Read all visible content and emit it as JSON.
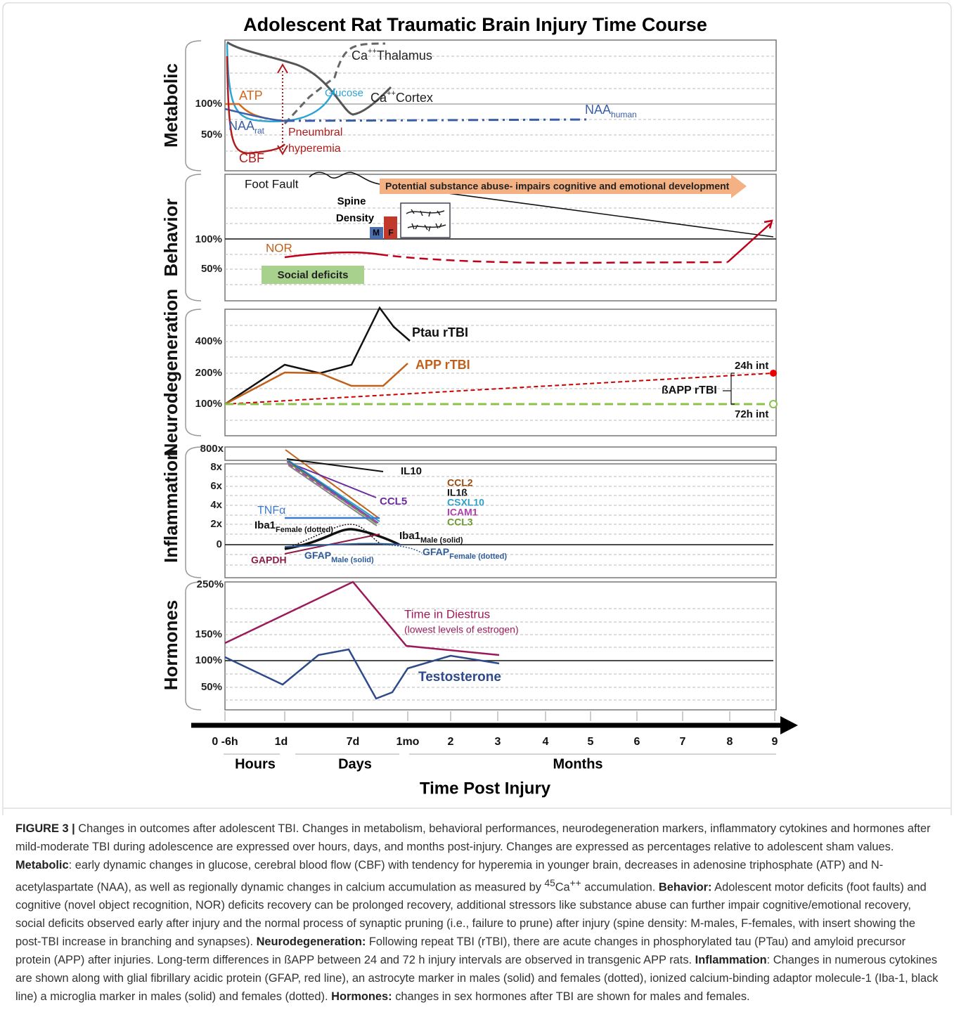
{
  "title": "Adolescent Rat Traumatic Brain Injury Time Course",
  "metabolic": {
    "name": "Metabolic",
    "yticks": [
      "100%",
      "50%"
    ],
    "ca_thalamus": {
      "base": "Ca",
      "sup": "++",
      "rest": "Thalamus"
    },
    "glucose": "Glucose",
    "ca_cortex": {
      "base": "Ca",
      "sup": "++",
      "rest": "Cortex"
    },
    "atp": "ATP",
    "naa_rat": {
      "base": "NAA",
      "sub": "rat"
    },
    "naa_human": {
      "base": "NAA",
      "sub": "human"
    },
    "cbf": "CBF",
    "pneumbral": [
      "Pneumbral",
      "hyperemia"
    ]
  },
  "behavior": {
    "name": "Behavior",
    "yticks": [
      "100%",
      "50%"
    ],
    "foot_fault": "Foot Fault",
    "substance": "Potential substance abuse- impairs cognitive and emotional development",
    "spine": [
      "Spine",
      "Density"
    ],
    "m": "M",
    "f": "F",
    "nor": "NOR",
    "social": "Social deficits"
  },
  "neurodegeneration": {
    "name": "Neurodegeneration",
    "yticks": [
      "400%",
      "200%",
      "100%"
    ],
    "ptau": "Ptau rTBI",
    "app": "APP rTBI",
    "h24": "24h int",
    "bapp": "ßAPP rTBI",
    "h72": "72h int"
  },
  "inflammation": {
    "name": "Inflammation",
    "yticks": [
      "800x",
      "8x",
      "6x",
      "4x",
      "2x",
      "0"
    ],
    "il10": "IL10",
    "ccl5": "CCL5",
    "group": [
      "CCL2",
      "IL1ß",
      "CSXL10",
      "ICAM1",
      "CCL3"
    ],
    "tnfa": "TNFα",
    "iba1_female": {
      "base": "Iba1",
      "sub": "Female (dotted)"
    },
    "iba1_male": {
      "base": "Iba1",
      "sub": "Male (solid)"
    },
    "gapdh": "GAPDH",
    "gfap_male": {
      "base": "GFAP",
      "sub": "Male (solid)"
    },
    "gfap_female": {
      "base": "GFAP",
      "sub": "Female (dotted)"
    }
  },
  "hormones": {
    "name": "Hormones",
    "yticks": [
      "250%",
      "150%",
      "100%",
      "50%"
    ],
    "diestrus": "Time in Diestrus",
    "diestrus_note": "(lowest levels of estrogen)",
    "testosterone": "Testosterone"
  },
  "axis": {
    "ticks": [
      "0 -6h",
      "1d",
      "7d",
      "1mo",
      "2",
      "3",
      "4",
      "5",
      "6",
      "7",
      "8",
      "9"
    ],
    "periods": [
      "Hours",
      "Days",
      "Months"
    ],
    "title": "Time Post Injury"
  },
  "caption": {
    "label": "FIGURE 3 |",
    "intro": "Changes in outcomes after adolescent TBI. Changes in metabolism, behavioral performances, neurodegeneration markers, inflammatory cytokines and hormones after mild-moderate TBI during adolescence are expressed over hours, days, and months post-injury. Changes are expressed as percentages relative to adolescent sham values.",
    "metabolic": {
      "heading": "Metabolic",
      "text": ": early dynamic changes in glucose, cerebral blood flow (CBF) with tendency for hyperemia in younger brain, decreases in adenosine triphosphate (ATP) and N-acetylaspartate (NAA), as well as regionally dynamic changes in calcium accumulation as measured by",
      "sup1": "45",
      "ca": "Ca",
      "sup2": "++",
      "end": "accumulation."
    },
    "behavior": {
      "heading": "Behavior:",
      "text": "Adolescent motor deficits (foot faults) and cognitive (novel object recognition, NOR) deficits recovery can be prolonged recovery, additional stressors like substance abuse can further impair cognitive/emotional recovery, social deficits observed early after injury and the normal process of synaptic pruning (i.e., failure to prune) after injury (spine density: M-males, F-females, with insert showing the post-TBI increase in branching and synapses)."
    },
    "neurodegeneration": {
      "heading": "Neurodegeneration:",
      "text": "Following repeat TBI (rTBI), there are acute changes in phosphorylated tau (PTau) and amyloid precursor protein (APP) after injuries. Long-term differences in ßAPP between 24 and 72 h injury intervals are observed in transgenic APP rats."
    },
    "inflammation": {
      "heading": "Inflammation",
      "text": ": Changes in numerous cytokines are shown along with glial fibrillary acidic protein (GFAP, red line), an astrocyte marker in males (solid) and females (dotted), ionized calcium-binding adaptor molecule-1 (Iba-1, black line) a microglia marker in males (solid) and females (dotted)."
    },
    "hormones": {
      "heading": "Hormones:",
      "text": "changes in sex hormones after TBI are shown for males and females."
    }
  }
}
